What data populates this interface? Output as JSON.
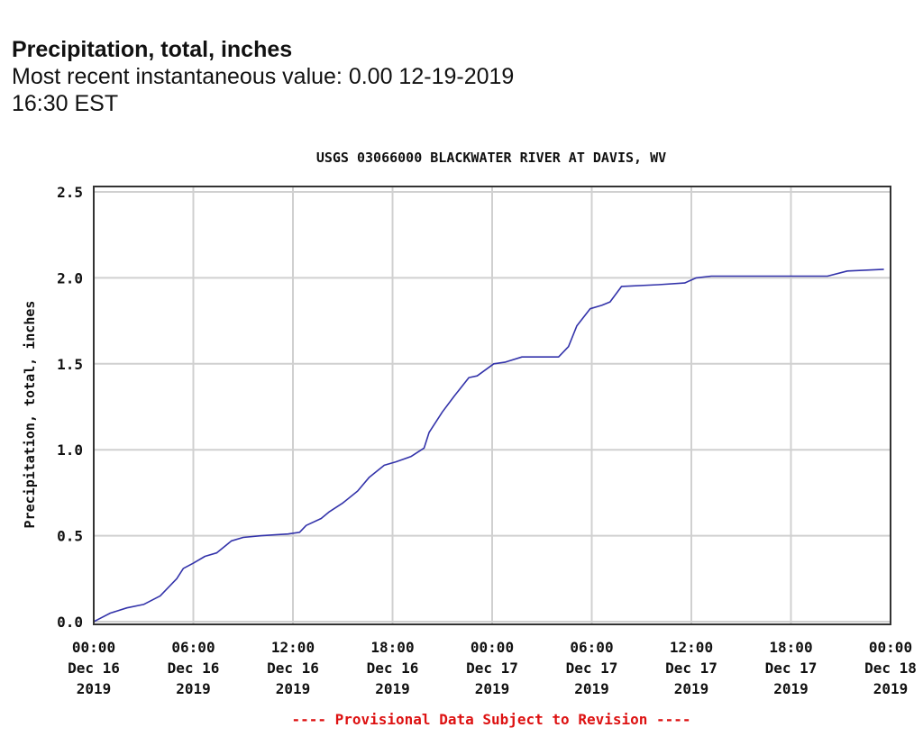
{
  "header": {
    "title": "Precipitation, total, inches",
    "recent_line1": "Most recent instantaneous value: 0.00 12-19-2019",
    "recent_line2": "16:30 EST"
  },
  "colors": {
    "line": "#3333aa",
    "grid": "#d0d0d0",
    "frame": "#333333",
    "provisional": "#dd1111",
    "text": "#111111"
  },
  "chart_data": {
    "type": "line",
    "title": "USGS 03066000 BLACKWATER RIVER AT DAVIS, WV",
    "xlabel": "",
    "ylabel": "Precipitation, total, inches",
    "ylim": [
      0,
      2.5
    ],
    "xlim_hours": [
      0,
      48
    ],
    "x_origin": "Dec 16 2019 00:00",
    "x_units": "hours since Dec 16 2019 00:00",
    "grid": true,
    "footnote": "---- Provisional Data Subject to Revision ----",
    "y_ticks": [
      {
        "value": 0.0,
        "label": "0.0"
      },
      {
        "value": 0.5,
        "label": "0.5"
      },
      {
        "value": 1.0,
        "label": "1.0"
      },
      {
        "value": 1.5,
        "label": "1.5"
      },
      {
        "value": 2.0,
        "label": "2.0"
      },
      {
        "value": 2.5,
        "label": "2.5"
      }
    ],
    "x_ticks": [
      {
        "hour": 0,
        "time": "00:00",
        "date": "Dec 16",
        "year": "2019"
      },
      {
        "hour": 6,
        "time": "06:00",
        "date": "Dec 16",
        "year": "2019"
      },
      {
        "hour": 12,
        "time": "12:00",
        "date": "Dec 16",
        "year": "2019"
      },
      {
        "hour": 18,
        "time": "18:00",
        "date": "Dec 16",
        "year": "2019"
      },
      {
        "hour": 24,
        "time": "00:00",
        "date": "Dec 17",
        "year": "2019"
      },
      {
        "hour": 30,
        "time": "06:00",
        "date": "Dec 17",
        "year": "2019"
      },
      {
        "hour": 36,
        "time": "12:00",
        "date": "Dec 17",
        "year": "2019"
      },
      {
        "hour": 42,
        "time": "18:00",
        "date": "Dec 17",
        "year": "2019"
      },
      {
        "hour": 48,
        "time": "00:00",
        "date": "Dec 18",
        "year": "2019"
      }
    ],
    "series": [
      {
        "name": "Precipitation, total, inches",
        "x": [
          0,
          0.4,
          1.0,
          2.0,
          3.0,
          4.0,
          5.0,
          5.4,
          6.0,
          6.7,
          7.4,
          8.3,
          9.0,
          10.1,
          11.7,
          12.4,
          12.8,
          13.7,
          14.2,
          15.0,
          15.9,
          16.6,
          17.5,
          18.2,
          19.1,
          19.9,
          20.2,
          21.0,
          21.7,
          22.6,
          23.1,
          24.1,
          24.8,
          25.8,
          28.0,
          28.6,
          29.1,
          29.9,
          30.6,
          31.1,
          31.8,
          34.0,
          35.6,
          36.3,
          37.2,
          44.2,
          45.4,
          47.6
        ],
        "values": [
          0.0,
          0.02,
          0.05,
          0.08,
          0.1,
          0.15,
          0.25,
          0.31,
          0.34,
          0.38,
          0.4,
          0.47,
          0.49,
          0.5,
          0.51,
          0.52,
          0.56,
          0.6,
          0.64,
          0.69,
          0.76,
          0.84,
          0.91,
          0.93,
          0.96,
          1.01,
          1.1,
          1.22,
          1.31,
          1.42,
          1.43,
          1.5,
          1.51,
          1.54,
          1.54,
          1.6,
          1.72,
          1.82,
          1.84,
          1.86,
          1.95,
          1.96,
          1.97,
          2.0,
          2.01,
          2.01,
          2.04,
          2.05
        ]
      }
    ]
  }
}
